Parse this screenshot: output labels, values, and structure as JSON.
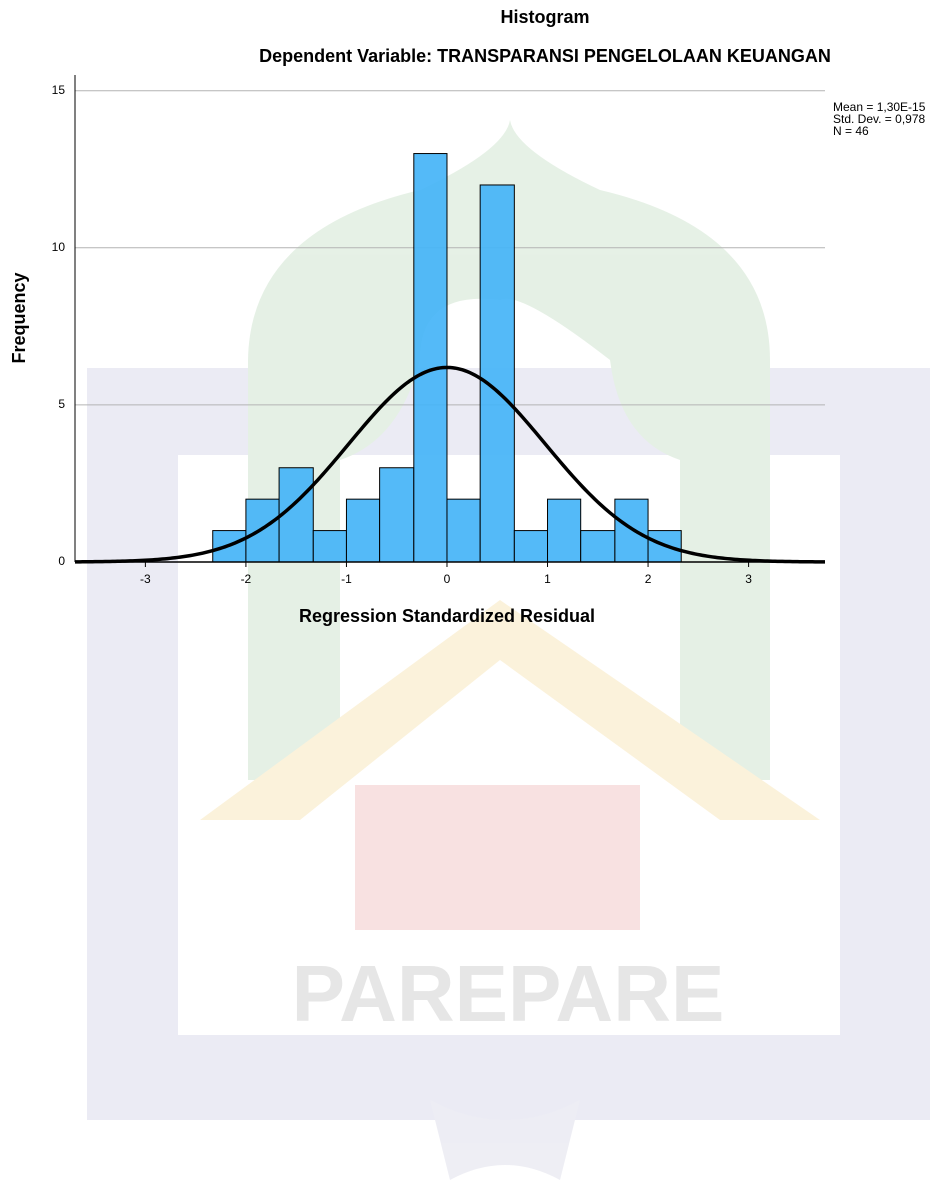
{
  "chart_data": {
    "type": "histogram",
    "title": "Histogram",
    "subtitle": "Dependent Variable: TRANSPARANSI PENGELOLAAN KEUANGAN",
    "x_label": "Regression Standardized Residual",
    "y_label": "Frequency",
    "bins": [
      -2.33,
      -2,
      -1.67,
      -1.33,
      -1,
      -0.67,
      -0.33,
      0,
      0.33,
      0.67,
      1,
      1.33,
      1.67,
      2,
      2.33
    ],
    "counts": [
      1,
      2,
      3,
      1,
      2,
      3,
      13,
      2,
      12,
      1,
      2,
      1,
      2,
      1
    ],
    "color": "#45b4f7",
    "xlim": [
      -3.7,
      3.76
    ],
    "ylim": [
      0,
      15.5
    ],
    "xticks": [
      -3,
      -2,
      -1,
      0,
      1,
      2,
      3
    ],
    "yticks": [
      0,
      5,
      10,
      15
    ],
    "grid": true,
    "stats": [
      "Mean = 1,30E-15",
      "Std. Dev. = 0,978",
      "N = 46"
    ],
    "normal_curve": {
      "mean": 1.3e-15,
      "std": 0.978,
      "n": 46,
      "color": "#000000"
    }
  },
  "watermark": {
    "text": "PAREPARE"
  }
}
